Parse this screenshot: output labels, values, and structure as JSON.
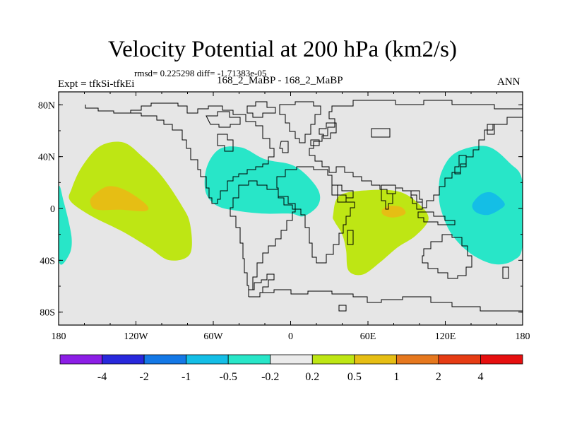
{
  "chart_data": {
    "type": "contour-map",
    "title": "Velocity Potential at 200 hPa (km2/s)",
    "stats_text": "rmsd= 0.225298 diff= -1.71383e-05",
    "left_label": "Expt = tfkSi-tfkEi",
    "center_label": "168_2_MaBP - 168_2_MaBP",
    "right_label": "ANN",
    "x_axis": {
      "range": [
        -180,
        180
      ],
      "ticks": [
        {
          "value": -180,
          "label": "180"
        },
        {
          "value": -120,
          "label": "120W"
        },
        {
          "value": -60,
          "label": "60W"
        },
        {
          "value": 0,
          "label": "0"
        },
        {
          "value": 60,
          "label": "60E"
        },
        {
          "value": 120,
          "label": "120E"
        },
        {
          "value": 180,
          "label": "180"
        }
      ]
    },
    "y_axis": {
      "range": [
        -90,
        90
      ],
      "ticks": [
        {
          "value": 80,
          "label": "80N"
        },
        {
          "value": 40,
          "label": "40N"
        },
        {
          "value": 0,
          "label": "0"
        },
        {
          "value": -40,
          "label": "40S"
        },
        {
          "value": -80,
          "label": "80S"
        }
      ]
    },
    "background_color": "#e6e6e6",
    "levels": [
      "-4",
      "-2",
      "-1",
      "-0.5",
      "-0.2",
      "0.2",
      "0.5",
      "1",
      "2",
      "4"
    ],
    "colorbar": [
      "#8c1ee6",
      "#2828dc",
      "#1478e6",
      "#14bee6",
      "#28e6c8",
      "#ebebeb",
      "#bee614",
      "#e6be14",
      "#e6781e",
      "#e63c14",
      "#e60f0f"
    ],
    "regions": [
      {
        "name": "east-pacific-high",
        "band": "0.2 to 0.5",
        "color": "#bee614",
        "polygon": [
          [
            -170,
            15
          ],
          [
            -162,
            32
          ],
          [
            -148,
            48
          ],
          [
            -130,
            51
          ],
          [
            -115,
            40
          ],
          [
            -100,
            25
          ],
          [
            -85,
            3
          ],
          [
            -78,
            -12
          ],
          [
            -78,
            -35
          ],
          [
            -94,
            -40
          ],
          [
            -110,
            -30
          ],
          [
            -130,
            -18
          ],
          [
            -156,
            -5
          ],
          [
            -171,
            6
          ]
        ]
      },
      {
        "name": "east-pacific-core",
        "band": "0.5 to 1",
        "color": "#e6be14",
        "polygon": [
          [
            -154,
            9
          ],
          [
            -142,
            17
          ],
          [
            -128,
            14
          ],
          [
            -112,
            3
          ],
          [
            -113,
            -2
          ],
          [
            -132,
            -1
          ],
          [
            -150,
            -1
          ],
          [
            -155,
            3
          ]
        ]
      },
      {
        "name": "indian-ocean-high",
        "band": "0.2 to 0.5",
        "color": "#bee614",
        "polygon": [
          [
            33,
            -5
          ],
          [
            38,
            10
          ],
          [
            60,
            14
          ],
          [
            84,
            13
          ],
          [
            99,
            4
          ],
          [
            107,
            -8
          ],
          [
            97,
            -21
          ],
          [
            83,
            -30
          ],
          [
            70,
            -41
          ],
          [
            56,
            -51
          ],
          [
            45,
            -48
          ],
          [
            43,
            -32
          ],
          [
            40,
            -20
          ],
          [
            34,
            -10
          ]
        ]
      },
      {
        "name": "indian-ocean-core",
        "band": "0.5 to 1",
        "color": "#e6be14",
        "polygon": [
          [
            71,
            -1
          ],
          [
            77,
            2
          ],
          [
            86,
            1
          ],
          [
            89,
            -4
          ],
          [
            80,
            -7
          ],
          [
            72,
            -5
          ]
        ]
      },
      {
        "name": "atlantic-low",
        "band": "-0.5 to -0.2",
        "color": "#28e6c8",
        "polygon": [
          [
            -65,
            32
          ],
          [
            -55,
            46
          ],
          [
            -38,
            47
          ],
          [
            -20,
            38
          ],
          [
            0,
            34
          ],
          [
            12,
            26
          ],
          [
            22,
            13
          ],
          [
            21,
            2
          ],
          [
            10,
            -6
          ],
          [
            0,
            -4
          ],
          [
            -20,
            -4
          ],
          [
            -40,
            -2
          ],
          [
            -57,
            2
          ],
          [
            -66,
            13
          ]
        ]
      },
      {
        "name": "west-pacific-low",
        "band": "-0.5 to -0.2",
        "color": "#28e6c8",
        "polygon": [
          [
            117,
            28
          ],
          [
            128,
            43
          ],
          [
            152,
            48
          ],
          [
            170,
            35
          ],
          [
            180,
            20
          ],
          [
            180,
            -28
          ],
          [
            173,
            -40
          ],
          [
            158,
            -43
          ],
          [
            140,
            -35
          ],
          [
            125,
            -20
          ],
          [
            117,
            -2
          ],
          [
            115,
            12
          ]
        ]
      },
      {
        "name": "west-pacific-core",
        "band": "-1 to -0.5",
        "color": "#14bee6",
        "polygon": [
          [
            141,
            3
          ],
          [
            148,
            11
          ],
          [
            157,
            12
          ],
          [
            166,
            4
          ],
          [
            162,
            -1
          ],
          [
            153,
            -5
          ],
          [
            144,
            -3
          ]
        ]
      },
      {
        "name": "dateline-low",
        "band": "-0.5 to -0.2",
        "color": "#28e6c8",
        "polygon": [
          [
            -180,
            15
          ],
          [
            -176,
            5
          ],
          [
            -170,
            -22
          ],
          [
            -172,
            -36
          ],
          [
            -180,
            -40
          ]
        ]
      }
    ]
  }
}
